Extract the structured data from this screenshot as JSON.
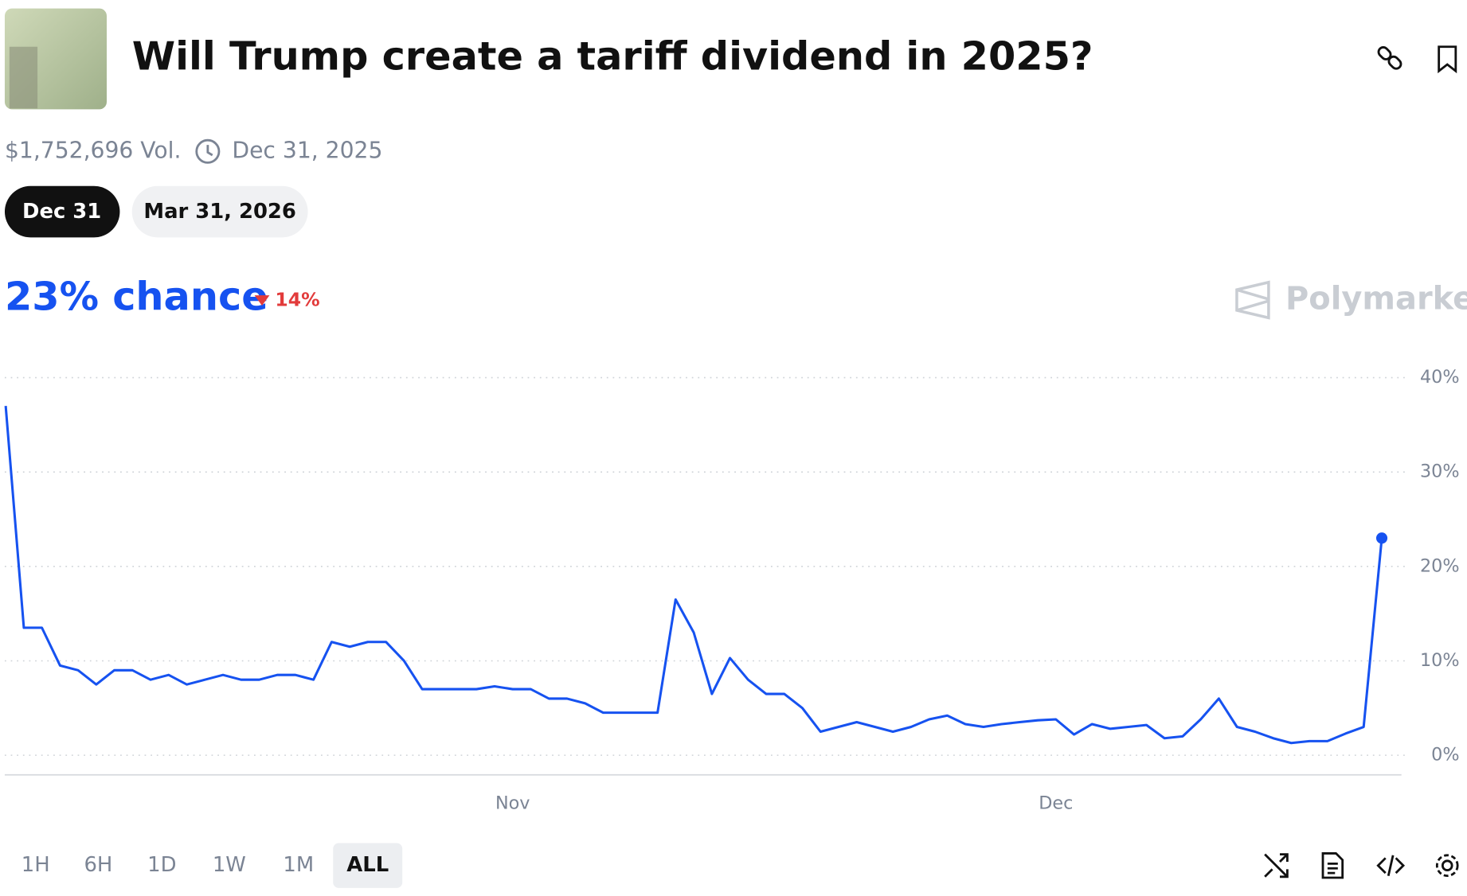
{
  "header": {
    "title": "Will Trump create a tariff dividend in 2025?",
    "volume": "$1,752,696 Vol.",
    "end_date": "Dec 31, 2025"
  },
  "tabs": [
    "Dec 31",
    "Mar 31, 2026"
  ],
  "summary": {
    "chance": "23% chance",
    "change": "14%"
  },
  "brand": "Polymarket",
  "ranges": [
    "1H",
    "6H",
    "1D",
    "1W",
    "1M",
    "ALL"
  ],
  "chart_data": {
    "type": "line",
    "color": "#1652f0",
    "grid": true,
    "categories": [
      null,
      null,
      null,
      null,
      null,
      null,
      null,
      null,
      null,
      null,
      null,
      null,
      null,
      null,
      null,
      null,
      null,
      null,
      null,
      null,
      null,
      null,
      null,
      null,
      null,
      null,
      null,
      null,
      "Nov",
      null,
      null,
      null,
      null,
      null,
      null,
      null,
      null,
      null,
      null,
      null,
      null,
      null,
      null,
      null,
      null,
      null,
      null,
      null,
      null,
      null,
      null,
      null,
      null,
      null,
      null,
      null,
      null,
      null,
      "Dec",
      null,
      null,
      null,
      null,
      null,
      null,
      null,
      null,
      null,
      null,
      null,
      null,
      null,
      null,
      null,
      null,
      null,
      null
    ],
    "values": [
      37,
      13.5,
      13.5,
      9.5,
      9,
      7.5,
      9,
      9,
      8,
      8.5,
      7.5,
      8,
      8.5,
      8,
      8,
      8.5,
      8.5,
      8,
      12,
      11.5,
      12,
      12,
      10,
      7,
      7,
      7,
      7,
      7.3,
      7,
      7,
      6,
      6,
      5.5,
      4.5,
      4.5,
      4.5,
      4.5,
      16.5,
      13,
      6.5,
      10.3,
      8,
      6.5,
      6.5,
      5,
      2.5,
      3,
      3.5,
      3,
      2.5,
      3,
      3.8,
      4.2,
      3.3,
      3,
      3.3,
      3.5,
      3.7,
      3.8,
      2.2,
      3.3,
      2.8,
      3,
      3.2,
      1.8,
      2,
      3.8,
      6,
      3,
      2.5,
      1.8,
      1.3,
      1.5,
      1.5,
      2.3,
      3,
      23
    ],
    "ylim": [
      0,
      40
    ],
    "yticks": [
      {
        "value": 0,
        "label": "0%"
      },
      {
        "value": 10,
        "label": "10%"
      },
      {
        "value": 20,
        "label": "20%"
      },
      {
        "value": 30,
        "label": "30%"
      },
      {
        "value": 40,
        "label": "40%"
      }
    ]
  }
}
